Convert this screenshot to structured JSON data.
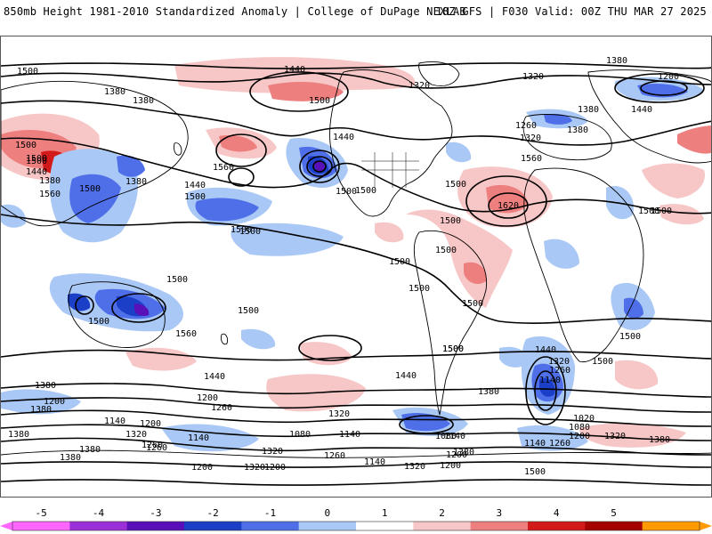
{
  "header": {
    "title_left": "850mb Height 1981-2010 Standardized Anomaly | College of DuPage NEXLAB",
    "title_right": "18Z GFS | F030 Valid: 00Z THU MAR 27 2025"
  },
  "colorbar": {
    "ticks": [
      "-5",
      "-4",
      "-3",
      "-2",
      "-1",
      "0",
      "1",
      "2",
      "3",
      "4",
      "5"
    ],
    "colors": [
      "#ff66ff",
      "#9b30d8",
      "#5a10b8",
      "#1c3fc8",
      "#4f6fe8",
      "#a9c8f5",
      "#ffffff",
      "#f7c6c6",
      "#ee7f7f",
      "#d21a1a",
      "#a50000",
      "#ff9a00"
    ]
  },
  "map": {
    "contour_labels": [
      {
        "text": "1440"
      },
      {
        "text": "1380"
      },
      {
        "text": "1380"
      },
      {
        "text": "1500"
      },
      {
        "text": "1500"
      },
      {
        "text": "1320"
      },
      {
        "text": "1320"
      },
      {
        "text": "1380"
      },
      {
        "text": "1200"
      },
      {
        "text": "1260"
      },
      {
        "text": "1380"
      },
      {
        "text": "1320"
      },
      {
        "text": "1560"
      },
      {
        "text": "1620"
      },
      {
        "text": "1440"
      },
      {
        "text": "1500"
      },
      {
        "text": "1500"
      },
      {
        "text": "1500"
      },
      {
        "text": "1440"
      },
      {
        "text": "1500"
      },
      {
        "text": "1380"
      },
      {
        "text": "1500"
      },
      {
        "text": "1500"
      },
      {
        "text": "1560"
      },
      {
        "text": "1440"
      },
      {
        "text": "1500"
      },
      {
        "text": "1380"
      },
      {
        "text": "1500"
      },
      {
        "text": "1500"
      },
      {
        "text": "1500"
      },
      {
        "text": "1500"
      },
      {
        "text": "1500"
      },
      {
        "text": "1500"
      },
      {
        "text": "1560"
      },
      {
        "text": "1500"
      },
      {
        "text": "1500"
      },
      {
        "text": "1500"
      },
      {
        "text": "1440"
      },
      {
        "text": "1440"
      },
      {
        "text": "1380"
      },
      {
        "text": "1320"
      },
      {
        "text": "1200"
      },
      {
        "text": "1380"
      },
      {
        "text": "1260"
      },
      {
        "text": "1200"
      },
      {
        "text": "1140"
      },
      {
        "text": "1320"
      },
      {
        "text": "1260"
      },
      {
        "text": "1200"
      },
      {
        "text": "1140"
      },
      {
        "text": "1380"
      },
      {
        "text": "1260"
      },
      {
        "text": "1140"
      },
      {
        "text": "1080"
      },
      {
        "text": "1320"
      },
      {
        "text": "1200"
      },
      {
        "text": "1260"
      },
      {
        "text": "1080"
      },
      {
        "text": "1140"
      },
      {
        "text": "1200"
      },
      {
        "text": "1440"
      },
      {
        "text": "1500"
      },
      {
        "text": "1320"
      },
      {
        "text": "1260"
      },
      {
        "text": "1140"
      },
      {
        "text": "1380"
      },
      {
        "text": "1500"
      },
      {
        "text": "1020"
      },
      {
        "text": "1080"
      },
      {
        "text": "1200"
      },
      {
        "text": "1320"
      },
      {
        "text": "1380"
      },
      {
        "text": "1140"
      },
      {
        "text": "1200"
      },
      {
        "text": "1320"
      },
      {
        "text": "1260"
      },
      {
        "text": "1140"
      },
      {
        "text": "1200"
      },
      {
        "text": "1380"
      },
      {
        "text": "1500"
      },
      {
        "text": "1500"
      },
      {
        "text": "1380"
      },
      {
        "text": "1500"
      },
      {
        "text": "1500"
      },
      {
        "text": "1380"
      },
      {
        "text": "1500"
      },
      {
        "text": "1440"
      },
      {
        "text": "1380"
      },
      {
        "text": "1320"
      },
      {
        "text": "1500"
      },
      {
        "text": "1500"
      },
      {
        "text": "1560"
      }
    ]
  }
}
